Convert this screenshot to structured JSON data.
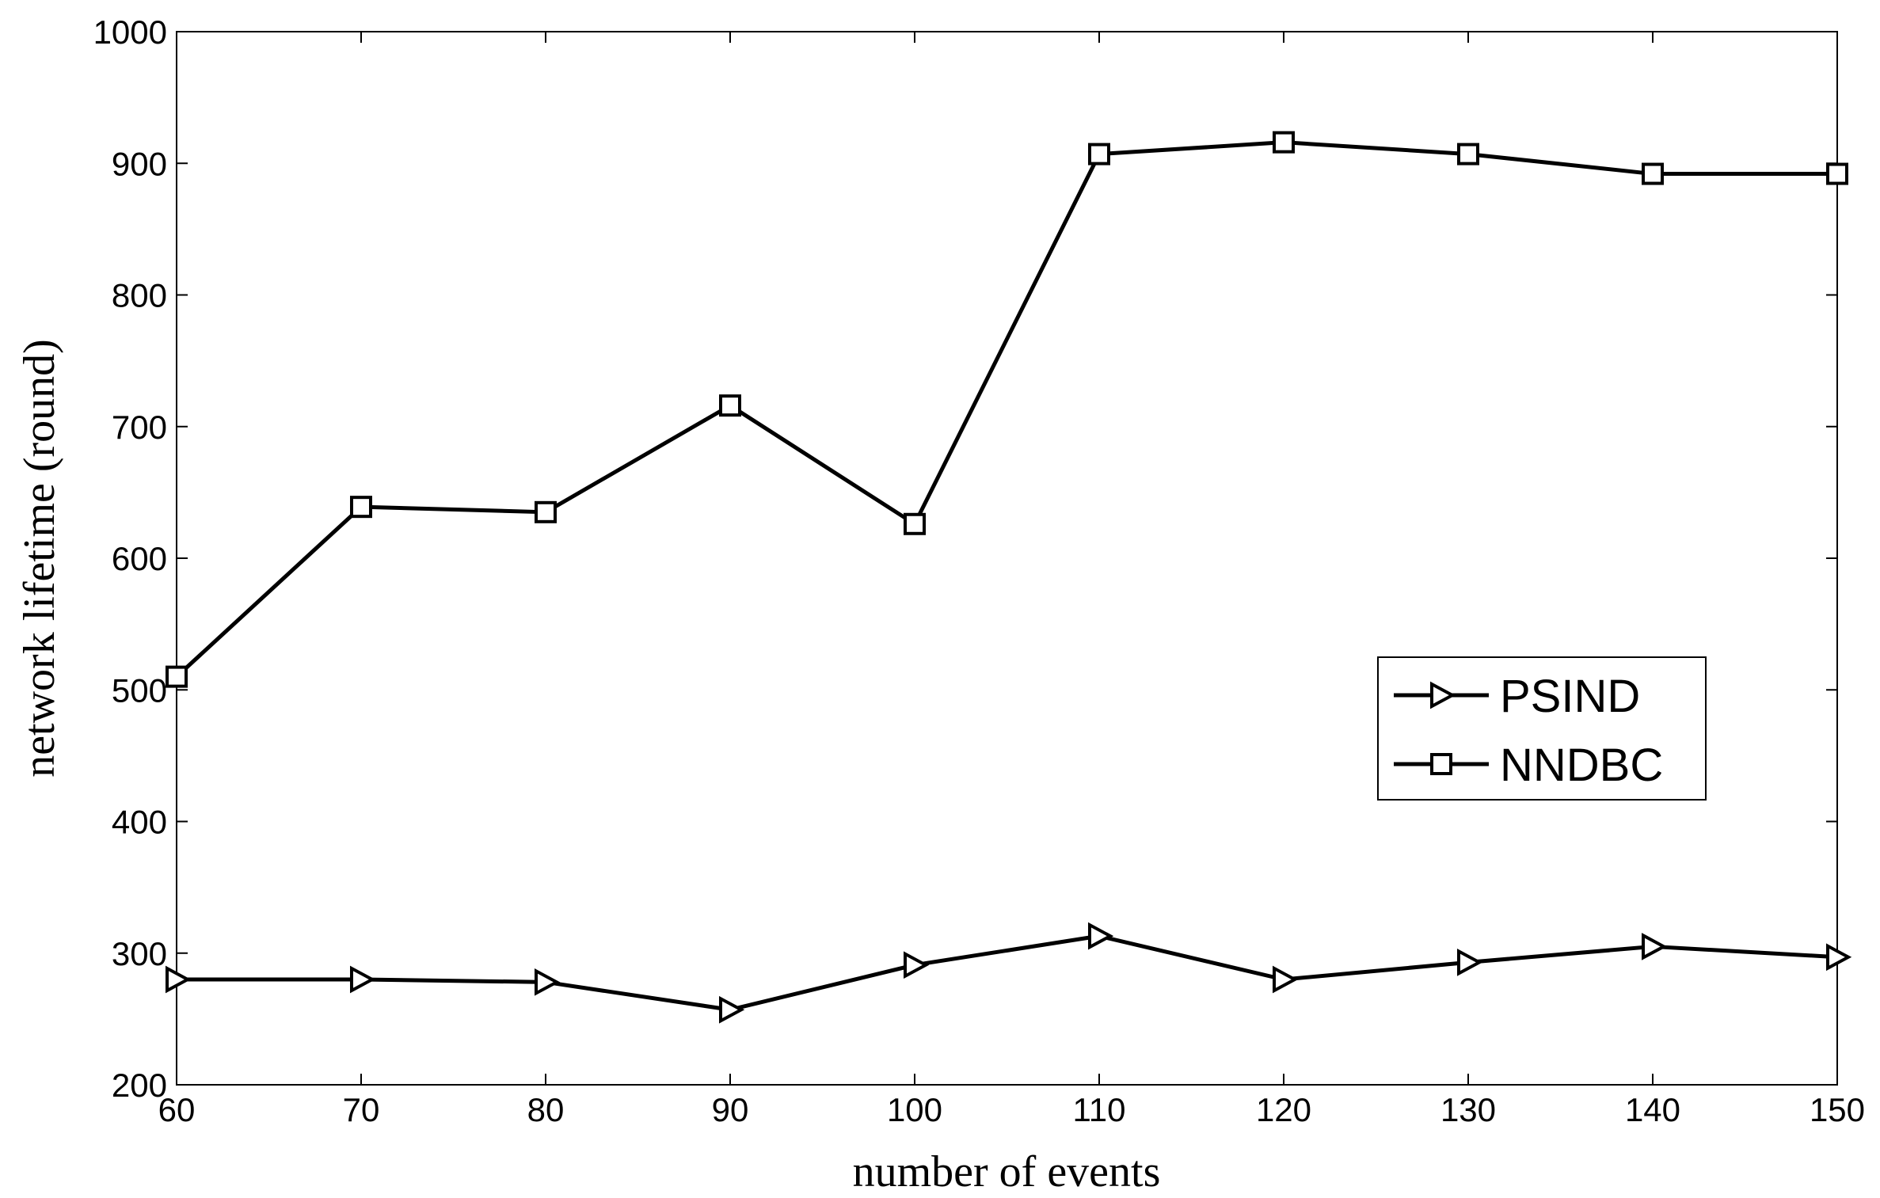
{
  "chart_data": {
    "type": "line",
    "title": "",
    "xlabel": "number of events",
    "ylabel": "network lifetime (round)",
    "xlim": [
      60,
      150
    ],
    "ylim": [
      200,
      1000
    ],
    "xticks": [
      60,
      70,
      80,
      90,
      100,
      110,
      120,
      130,
      140,
      150
    ],
    "yticks": [
      200,
      300,
      400,
      500,
      600,
      700,
      800,
      900,
      1000
    ],
    "x": [
      60,
      70,
      80,
      90,
      100,
      110,
      120,
      130,
      140,
      150
    ],
    "grid": false,
    "legend_position": "center-right",
    "series": [
      {
        "name": "PSIND",
        "marker": "triangle-right",
        "color": "#000000",
        "values": [
          280,
          280,
          278,
          257,
          291,
          313,
          280,
          293,
          305,
          297
        ]
      },
      {
        "name": "NNDBC",
        "marker": "square",
        "color": "#000000",
        "values": [
          510,
          639,
          635,
          716,
          626,
          907,
          916,
          907,
          892,
          892
        ]
      }
    ]
  }
}
